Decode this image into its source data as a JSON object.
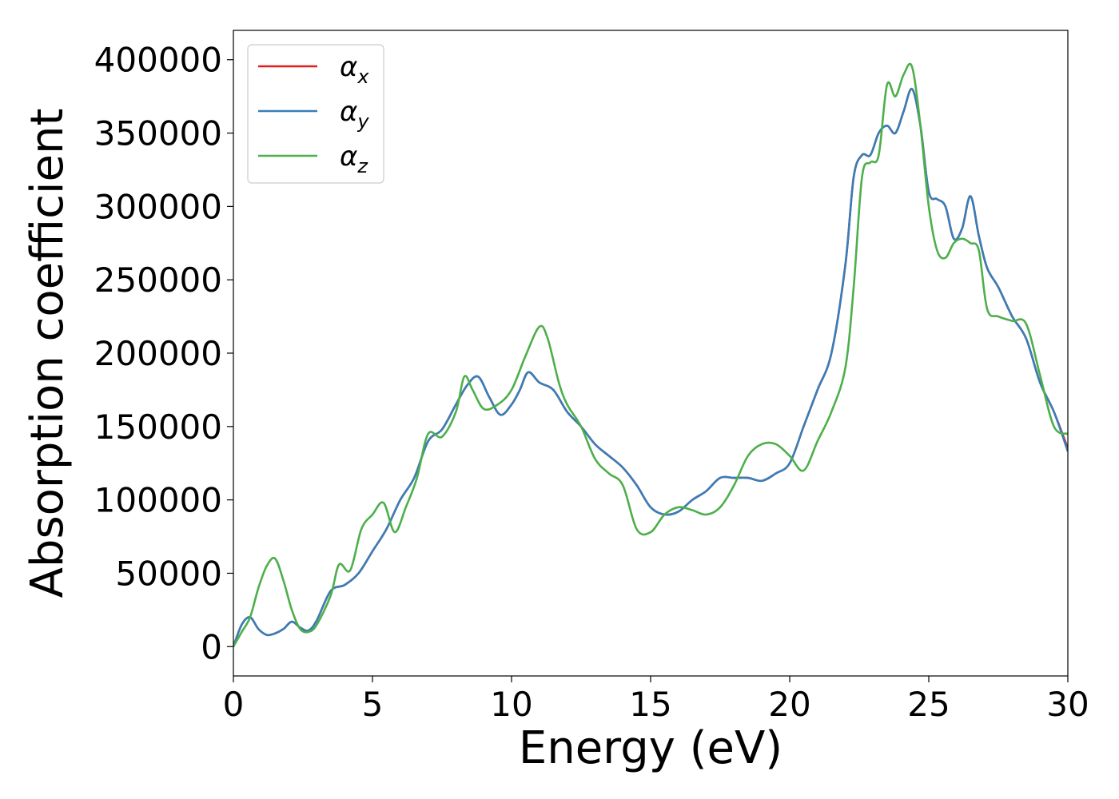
{
  "chart_data": {
    "type": "line",
    "xlabel": "Energy (eV)",
    "ylabel": "Absorption coefficient",
    "xlim": [
      0,
      30
    ],
    "ylim": [
      -20000,
      420000
    ],
    "xticks": [
      0,
      5,
      10,
      15,
      20,
      25,
      30
    ],
    "yticks": [
      0,
      50000,
      100000,
      150000,
      200000,
      250000,
      300000,
      350000,
      400000
    ],
    "grid": false,
    "legend_position": "top-left",
    "series": [
      {
        "name": "αx",
        "symbol": "α",
        "subscript": "x",
        "color": "#e41a1c",
        "x": [
          0,
          0.3,
          0.6,
          0.9,
          1.2,
          1.5,
          1.8,
          2.1,
          2.4,
          2.7,
          3.0,
          3.5,
          4.0,
          4.5,
          5.0,
          5.5,
          6.0,
          6.5,
          7.0,
          7.5,
          8.0,
          8.4,
          8.8,
          9.2,
          9.6,
          10.0,
          10.3,
          10.6,
          11.0,
          11.5,
          12.0,
          12.5,
          13.0,
          13.5,
          14.0,
          14.5,
          15.0,
          15.5,
          16.0,
          16.5,
          17.0,
          17.5,
          18.0,
          18.5,
          19.0,
          19.5,
          20.0,
          20.5,
          21.0,
          21.5,
          22.0,
          22.3,
          22.6,
          22.9,
          23.2,
          23.5,
          23.8,
          24.1,
          24.4,
          24.7,
          25.0,
          25.3,
          25.6,
          25.9,
          26.2,
          26.5,
          26.8,
          27.1,
          27.5,
          28.0,
          28.5,
          29.0,
          29.5,
          30.0
        ],
        "y": [
          0,
          15000,
          20000,
          12000,
          8000,
          9000,
          12000,
          17000,
          13000,
          11000,
          18000,
          38000,
          42000,
          50000,
          65000,
          80000,
          100000,
          115000,
          140000,
          148000,
          165000,
          178000,
          184000,
          170000,
          158000,
          165000,
          175000,
          187000,
          180000,
          175000,
          160000,
          150000,
          138000,
          130000,
          122000,
          110000,
          95000,
          90000,
          92000,
          100000,
          106000,
          115000,
          115000,
          115000,
          113000,
          118000,
          125000,
          150000,
          175000,
          200000,
          260000,
          320000,
          335000,
          335000,
          350000,
          355000,
          350000,
          365000,
          380000,
          355000,
          310000,
          305000,
          300000,
          278000,
          285000,
          307000,
          280000,
          258000,
          245000,
          225000,
          210000,
          180000,
          160000,
          135000
        ]
      },
      {
        "name": "αy",
        "symbol": "α",
        "subscript": "y",
        "color": "#377eb8",
        "x": [
          0,
          0.3,
          0.6,
          0.9,
          1.2,
          1.5,
          1.8,
          2.1,
          2.4,
          2.7,
          3.0,
          3.5,
          4.0,
          4.5,
          5.0,
          5.5,
          6.0,
          6.5,
          7.0,
          7.5,
          8.0,
          8.4,
          8.8,
          9.2,
          9.6,
          10.0,
          10.3,
          10.6,
          11.0,
          11.5,
          12.0,
          12.5,
          13.0,
          13.5,
          14.0,
          14.5,
          15.0,
          15.5,
          16.0,
          16.5,
          17.0,
          17.5,
          18.0,
          18.5,
          19.0,
          19.5,
          20.0,
          20.5,
          21.0,
          21.5,
          22.0,
          22.3,
          22.6,
          22.9,
          23.2,
          23.5,
          23.8,
          24.1,
          24.4,
          24.7,
          25.0,
          25.3,
          25.6,
          25.9,
          26.2,
          26.5,
          26.8,
          27.1,
          27.5,
          28.0,
          28.5,
          29.0,
          29.5,
          30.0
        ],
        "y": [
          0,
          15000,
          20000,
          12000,
          8000,
          9000,
          12000,
          17000,
          13000,
          11000,
          18000,
          38000,
          42000,
          50000,
          65000,
          80000,
          100000,
          115000,
          140000,
          148000,
          165000,
          178000,
          184000,
          170000,
          158000,
          165000,
          175000,
          187000,
          180000,
          175000,
          160000,
          150000,
          138000,
          130000,
          122000,
          110000,
          95000,
          90000,
          92000,
          100000,
          106000,
          115000,
          115000,
          115000,
          113000,
          118000,
          125000,
          150000,
          175000,
          200000,
          260000,
          320000,
          335000,
          335000,
          350000,
          355000,
          350000,
          365000,
          380000,
          355000,
          310000,
          305000,
          300000,
          278000,
          285000,
          307000,
          280000,
          258000,
          245000,
          225000,
          210000,
          180000,
          160000,
          133000
        ]
      },
      {
        "name": "αz",
        "symbol": "α",
        "subscript": "z",
        "color": "#4daf4a",
        "x": [
          0,
          0.3,
          0.6,
          0.9,
          1.2,
          1.5,
          1.8,
          2.1,
          2.4,
          2.7,
          3.0,
          3.5,
          3.8,
          4.2,
          4.6,
          5.0,
          5.4,
          5.8,
          6.2,
          6.6,
          7.0,
          7.5,
          8.0,
          8.3,
          8.6,
          9.0,
          9.5,
          10.0,
          10.5,
          11.0,
          11.3,
          11.7,
          12.0,
          12.5,
          13.0,
          13.5,
          14.0,
          14.5,
          15.0,
          15.5,
          16.0,
          16.5,
          17.0,
          17.5,
          18.0,
          18.5,
          19.0,
          19.5,
          20.0,
          20.5,
          21.0,
          21.5,
          22.0,
          22.3,
          22.6,
          22.9,
          23.2,
          23.5,
          23.8,
          24.1,
          24.4,
          24.7,
          25.0,
          25.3,
          25.6,
          25.9,
          26.2,
          26.5,
          26.8,
          27.1,
          27.5,
          28.0,
          28.5,
          29.0,
          29.5,
          30.0
        ],
        "y": [
          0,
          10000,
          20000,
          40000,
          55000,
          60000,
          45000,
          25000,
          12000,
          10000,
          15000,
          35000,
          56000,
          52000,
          80000,
          90000,
          98000,
          78000,
          95000,
          115000,
          145000,
          143000,
          160000,
          184000,
          175000,
          162000,
          165000,
          175000,
          198000,
          218000,
          210000,
          180000,
          165000,
          150000,
          128000,
          118000,
          110000,
          80000,
          78000,
          90000,
          95000,
          93000,
          90000,
          95000,
          110000,
          130000,
          138000,
          138000,
          130000,
          120000,
          140000,
          160000,
          190000,
          245000,
          320000,
          330000,
          335000,
          383000,
          375000,
          390000,
          395000,
          355000,
          300000,
          270000,
          265000,
          275000,
          278000,
          275000,
          270000,
          230000,
          225000,
          222000,
          220000,
          185000,
          150000,
          145000
        ]
      }
    ]
  }
}
